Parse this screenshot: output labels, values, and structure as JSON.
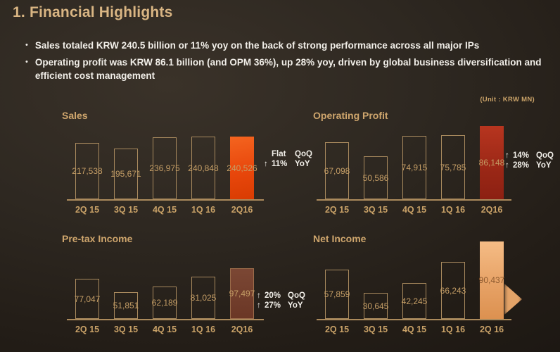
{
  "slide": {
    "title": "1. Financial Highlights",
    "unit_label": "(Unit : KRW MN)",
    "bullets": [
      "Sales totaled KRW 240.5 billion or 11% yoy on the back of strong performance across all major IPs",
      "Operating profit was KRW 86.1 billion (and OPM 36%), up 28% yoy, driven by global business diversification and efficient cost management"
    ]
  },
  "colors": {
    "title_gold": "#d9b583",
    "chart_gold": "#c9a268",
    "text_white": "#f1eee8",
    "axis_tan": "#ab8a5c",
    "sales_highlight": "#e8470c",
    "operating_profit_highlight": "#9a2716",
    "pretax_highlight": "#6b3726",
    "net_income_highlight": "#e7a266"
  },
  "chart_data": [
    {
      "type": "bar",
      "title": "Sales",
      "unit": "KRW MN",
      "categories": [
        "2Q 15",
        "3Q 15",
        "4Q 15",
        "1Q 16",
        "2Q16"
      ],
      "values": [
        217538,
        195671,
        236975,
        240848,
        240526
      ],
      "value_labels": [
        "217,538",
        "195,671",
        "236,975",
        "240,848",
        "240,526"
      ],
      "highlight_index": 4,
      "ylim": [
        0,
        241000
      ],
      "grid": false,
      "y_axis_visible": false,
      "annotations": [
        {
          "arrow": "",
          "value": "Flat",
          "label": "QoQ"
        },
        {
          "arrow": "↑",
          "value": "11%",
          "label": "YoY"
        }
      ]
    },
    {
      "type": "bar",
      "title": "Operating Profit",
      "unit": "KRW MN",
      "categories": [
        "2Q 15",
        "3Q 15",
        "4Q 15",
        "1Q 16",
        "2Q16"
      ],
      "values": [
        67098,
        50586,
        74915,
        75785,
        86148
      ],
      "value_labels": [
        "67,098",
        "50,586",
        "74,915",
        "75,785",
        "86,148"
      ],
      "highlight_index": 4,
      "ylim": [
        0,
        87000
      ],
      "grid": false,
      "y_axis_visible": false,
      "annotations": [
        {
          "arrow": "↑",
          "value": "14%",
          "label": "QoQ"
        },
        {
          "arrow": "↑",
          "value": "28%",
          "label": "YoY"
        }
      ]
    },
    {
      "type": "bar",
      "title": "Pre-tax Income",
      "unit": "KRW MN",
      "categories": [
        "2Q 15",
        "3Q 15",
        "4Q 15",
        "1Q 16",
        "2Q16"
      ],
      "values": [
        77047,
        51851,
        62189,
        81025,
        97497
      ],
      "value_labels": [
        "77,047",
        "51,851",
        "62,189",
        "81,025",
        "97,497"
      ],
      "highlight_index": 4,
      "ylim": [
        0,
        98000
      ],
      "grid": false,
      "y_axis_visible": false,
      "annotations": [
        {
          "arrow": "↑",
          "value": "20%",
          "label": "QoQ"
        },
        {
          "arrow": "↑",
          "value": "27%",
          "label": "YoY"
        }
      ]
    },
    {
      "type": "bar",
      "title": "Net Income",
      "unit": "KRW MN",
      "categories": [
        "2Q 15",
        "3Q 15",
        "4Q 15",
        "1Q 16",
        "2Q 16"
      ],
      "values": [
        57859,
        30645,
        42245,
        66243,
        90437
      ],
      "value_labels": [
        "57,859",
        "30,645",
        "42,245",
        "66,243",
        "90,437"
      ],
      "highlight_index": 4,
      "ylim": [
        0,
        91000
      ],
      "grid": false,
      "y_axis_visible": false,
      "annotations": []
    }
  ]
}
